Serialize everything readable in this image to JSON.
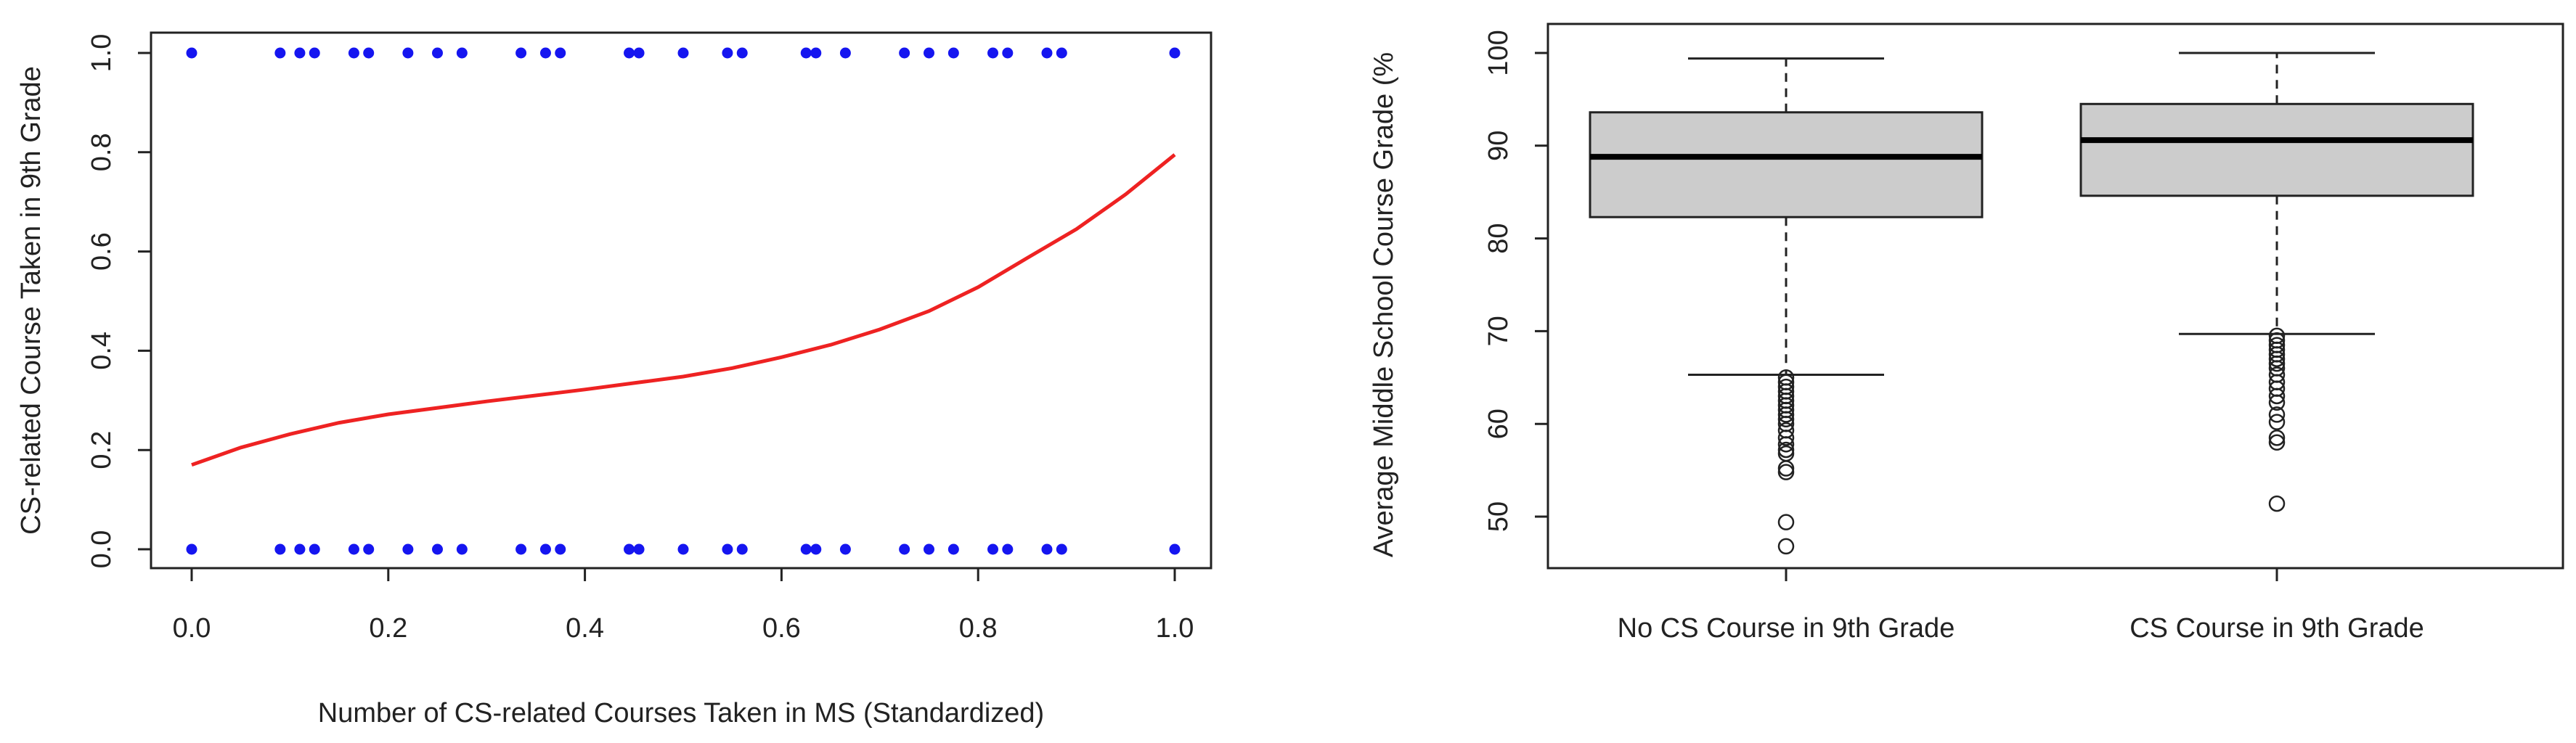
{
  "chart_data": [
    {
      "type": "scatter",
      "xlabel": "Number of CS-related Courses Taken in MS (Standardized)",
      "ylabel": "CS-related Course Taken in 9th Grade",
      "xlim": [
        0.0,
        1.0
      ],
      "ylim": [
        0.0,
        1.0
      ],
      "xticks": [
        "0.0",
        "0.2",
        "0.4",
        "0.6",
        "0.8",
        "1.0"
      ],
      "yticks": [
        "0.0",
        "0.2",
        "0.4",
        "0.6",
        "0.8",
        "1.0"
      ],
      "grid": false,
      "points_y1": [
        0.0,
        0.09,
        0.11,
        0.125,
        0.165,
        0.18,
        0.22,
        0.25,
        0.275,
        0.335,
        0.36,
        0.375,
        0.445,
        0.455,
        0.5,
        0.545,
        0.56,
        0.625,
        0.635,
        0.665,
        0.725,
        0.75,
        0.775,
        0.815,
        0.83,
        0.87,
        0.885,
        1.0
      ],
      "points_y0": [
        0.0,
        0.09,
        0.11,
        0.125,
        0.165,
        0.18,
        0.22,
        0.25,
        0.275,
        0.335,
        0.36,
        0.375,
        0.445,
        0.455,
        0.5,
        0.545,
        0.56,
        0.625,
        0.635,
        0.665,
        0.725,
        0.75,
        0.775,
        0.815,
        0.83,
        0.87,
        0.885,
        1.0
      ],
      "fit_curve": {
        "x": [
          0.0,
          0.05,
          0.1,
          0.15,
          0.2,
          0.25,
          0.3,
          0.35,
          0.4,
          0.45,
          0.5,
          0.55,
          0.6,
          0.65,
          0.7,
          0.75,
          0.8,
          0.85,
          0.9,
          0.95,
          1.0
        ],
        "y": [
          0.17,
          0.205,
          0.232,
          0.255,
          0.272,
          0.285,
          0.298,
          0.31,
          0.322,
          0.335,
          0.348,
          0.365,
          0.387,
          0.412,
          0.443,
          0.48,
          0.528,
          0.587,
          0.645,
          0.715,
          0.795
        ]
      },
      "colors": {
        "points": "#1515f0",
        "curve": "#ee2222"
      }
    },
    {
      "type": "boxplot",
      "xlabel": "",
      "ylabel": "Average Middle School Course Grade (%",
      "ylim": [
        44.5,
        103
      ],
      "yticks": [
        "50",
        "60",
        "70",
        "80",
        "90",
        "100"
      ],
      "categories": [
        "No CS Course in 9th Grade",
        "CS Course in 9th Grade"
      ],
      "boxes": [
        {
          "whisker_low": 65.3,
          "q1": 82.3,
          "median": 88.8,
          "q3": 93.6,
          "whisker_high": 99.4,
          "outliers": [
            65.0,
            64.5,
            64.0,
            63.5,
            63.0,
            62.5,
            62.0,
            61.5,
            61.0,
            60.5,
            60.0,
            59.3,
            58.5,
            57.8,
            57.2,
            56.8,
            55.2,
            54.8,
            49.4,
            46.8
          ]
        },
        {
          "whisker_low": 69.7,
          "q1": 84.6,
          "median": 90.6,
          "q3": 94.5,
          "whisker_high": 100.0,
          "outliers": [
            69.5,
            69.0,
            68.5,
            68.0,
            67.5,
            67.0,
            66.5,
            66.0,
            65.3,
            64.5,
            63.8,
            63.0,
            62.3,
            61.0,
            60.2,
            58.5,
            58.0,
            51.4
          ]
        }
      ],
      "colors": {
        "box_fill": "#cccccc"
      }
    }
  ]
}
